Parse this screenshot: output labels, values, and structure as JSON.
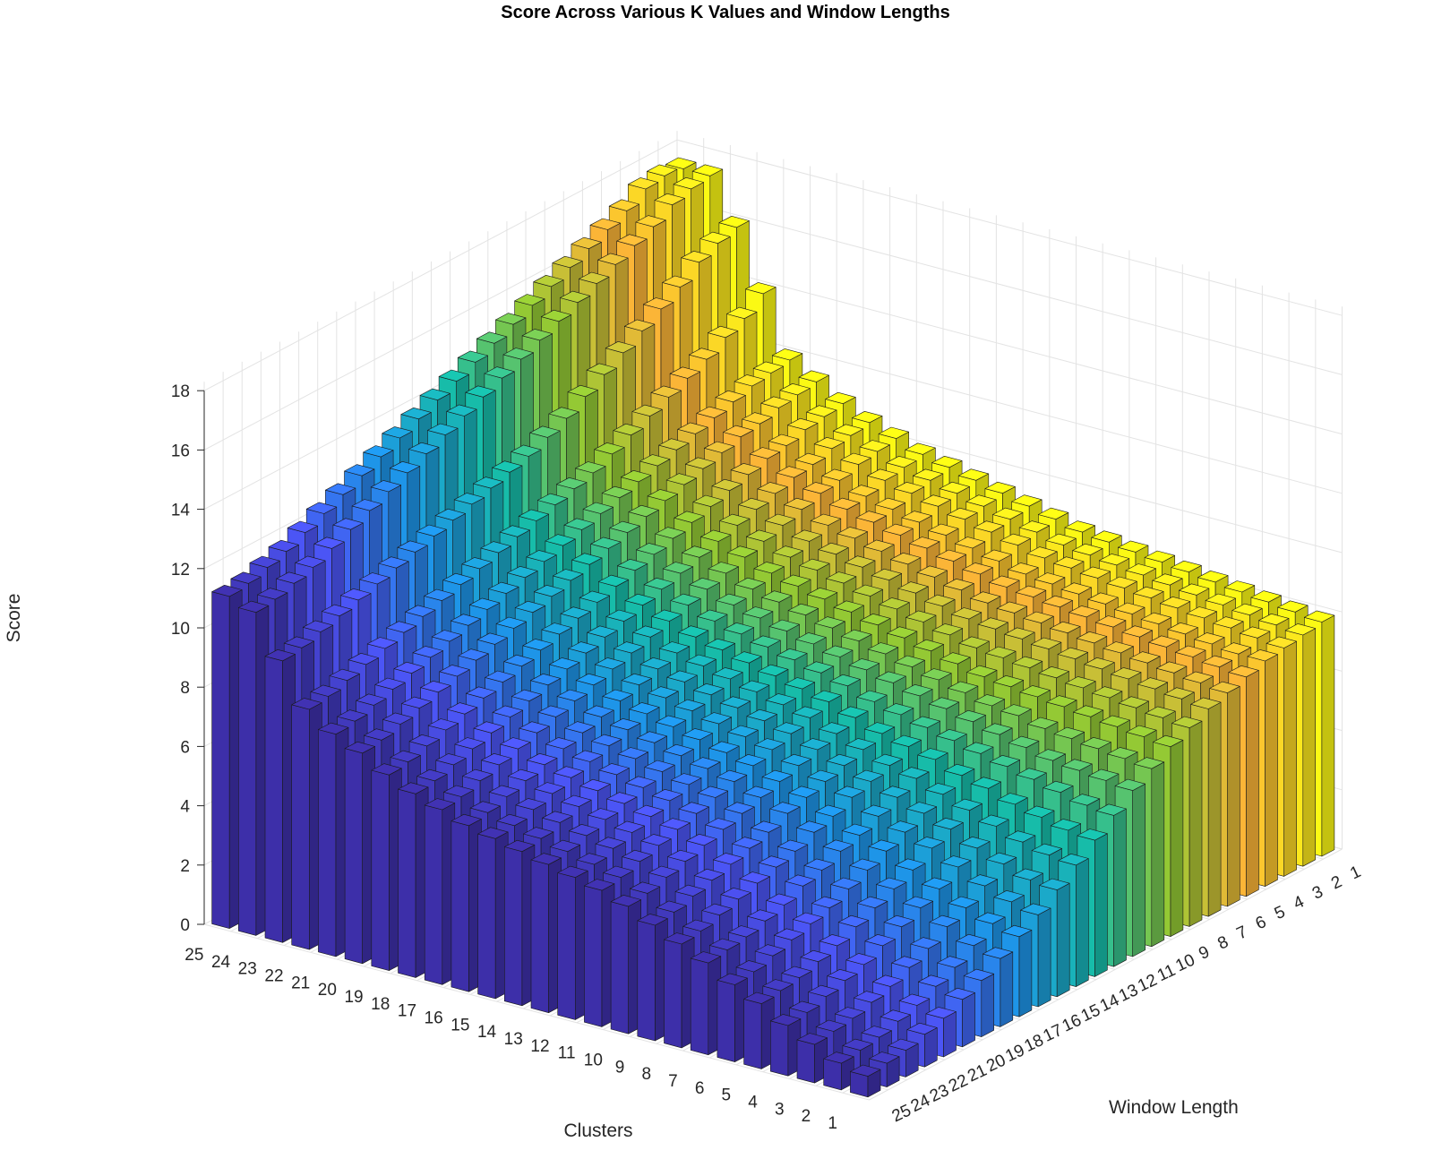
{
  "chart_data": {
    "type": "bar3",
    "title": "Score Across Various K Values and Window Lengths",
    "xlabel": "Window Length",
    "ylabel": "Clusters",
    "zlabel": "Score",
    "x_ticks": [
      "1",
      "2",
      "3",
      "4",
      "5",
      "6",
      "7",
      "8",
      "9",
      "10",
      "11",
      "12",
      "13",
      "14",
      "15",
      "16",
      "17",
      "18",
      "19",
      "20",
      "21",
      "22",
      "23",
      "24",
      "25"
    ],
    "y_ticks": [
      "1",
      "2",
      "3",
      "4",
      "5",
      "6",
      "7",
      "8",
      "9",
      "10",
      "11",
      "12",
      "13",
      "14",
      "15",
      "16",
      "17",
      "18",
      "19",
      "20",
      "21",
      "22",
      "23",
      "24",
      "25"
    ],
    "z_ticks": [
      "0",
      "2",
      "4",
      "6",
      "8",
      "10",
      "12",
      "14",
      "16",
      "18"
    ],
    "zlim": [
      0,
      18
    ],
    "grid": true,
    "colormap": [
      "#fbf914",
      "#fbb537",
      "#94c934",
      "#17bca9",
      "#1e95e8",
      "#4b55f5",
      "#3d2fa9"
    ],
    "color_by": "window length",
    "values_by_window_length": [
      {
        "window_length": 1,
        "scores": [
          7.9,
          8.0,
          8.1,
          8.2,
          8.3,
          8.4,
          8.5,
          8.6,
          8.7,
          8.8,
          9.0,
          9.2,
          9.4,
          9.6,
          9.8,
          10.0,
          10.3,
          10.6,
          11.0,
          11.5,
          12.0,
          14.0,
          16.0,
          17.5,
          17.5
        ]
      },
      {
        "window_length": 2,
        "scores": [
          7.8,
          7.9,
          8.0,
          8.1,
          8.2,
          8.3,
          8.4,
          8.5,
          8.6,
          8.7,
          8.9,
          9.1,
          9.3,
          9.5,
          9.7,
          9.9,
          10.2,
          10.5,
          10.9,
          11.4,
          11.9,
          13.5,
          15.8,
          17.4,
          17.6
        ]
      },
      {
        "window_length": 3,
        "scores": [
          7.7,
          7.8,
          7.9,
          8.0,
          8.1,
          8.2,
          8.3,
          8.4,
          8.5,
          8.6,
          8.8,
          9.0,
          9.2,
          9.4,
          9.6,
          9.8,
          10.1,
          10.4,
          10.8,
          11.3,
          11.8,
          13.2,
          15.5,
          17.2,
          17.5
        ]
      },
      {
        "window_length": 4,
        "scores": [
          7.6,
          7.6,
          7.7,
          7.8,
          7.9,
          8.0,
          8.1,
          8.2,
          8.3,
          8.4,
          8.6,
          8.8,
          9.0,
          9.2,
          9.4,
          9.6,
          9.9,
          10.2,
          10.6,
          11.1,
          11.6,
          12.8,
          15.0,
          16.8,
          17.1
        ]
      },
      {
        "window_length": 5,
        "scores": [
          7.4,
          7.5,
          7.6,
          7.7,
          7.8,
          7.9,
          8.0,
          8.1,
          8.2,
          8.3,
          8.5,
          8.7,
          8.9,
          9.1,
          9.3,
          9.5,
          9.8,
          10.1,
          10.5,
          11.0,
          11.4,
          12.5,
          14.6,
          16.5,
          16.8
        ]
      },
      {
        "window_length": 6,
        "scores": [
          7.2,
          7.3,
          7.4,
          7.5,
          7.6,
          7.7,
          7.8,
          7.9,
          8.0,
          8.1,
          8.3,
          8.5,
          8.7,
          8.9,
          9.1,
          9.3,
          9.6,
          9.9,
          10.3,
          10.8,
          11.2,
          12.2,
          14.2,
          16.2,
          16.5
        ]
      },
      {
        "window_length": 7,
        "scores": [
          7.0,
          7.1,
          7.2,
          7.3,
          7.4,
          7.5,
          7.6,
          7.7,
          7.8,
          7.9,
          8.1,
          8.3,
          8.5,
          8.7,
          8.9,
          9.1,
          9.4,
          9.7,
          10.1,
          10.6,
          11.0,
          11.9,
          13.8,
          15.9,
          16.2
        ]
      },
      {
        "window_length": 8,
        "scores": [
          6.7,
          6.8,
          6.9,
          7.0,
          7.1,
          7.2,
          7.3,
          7.4,
          7.5,
          7.7,
          7.9,
          8.1,
          8.3,
          8.5,
          8.7,
          8.9,
          9.2,
          9.5,
          9.9,
          10.4,
          10.8,
          11.6,
          13.4,
          15.6,
          15.9
        ]
      },
      {
        "window_length": 9,
        "scores": [
          6.4,
          6.5,
          6.6,
          6.7,
          6.8,
          6.9,
          7.0,
          7.1,
          7.3,
          7.5,
          7.7,
          7.9,
          8.1,
          8.3,
          8.5,
          8.7,
          9.0,
          9.3,
          9.7,
          10.2,
          10.6,
          11.3,
          13.0,
          15.3,
          15.6
        ]
      },
      {
        "window_length": 10,
        "scores": [
          6.0,
          6.1,
          6.2,
          6.3,
          6.4,
          6.6,
          6.7,
          6.9,
          7.1,
          7.3,
          7.5,
          7.7,
          7.9,
          8.1,
          8.3,
          8.5,
          8.8,
          9.1,
          9.5,
          10.0,
          10.4,
          11.0,
          12.6,
          15.0,
          15.3
        ]
      },
      {
        "window_length": 11,
        "scores": [
          5.6,
          5.7,
          5.8,
          5.9,
          6.1,
          6.3,
          6.5,
          6.7,
          6.9,
          7.1,
          7.3,
          7.5,
          7.7,
          7.9,
          8.1,
          8.3,
          8.6,
          8.9,
          9.3,
          9.8,
          10.2,
          10.8,
          12.3,
          14.7,
          15.0
        ]
      },
      {
        "window_length": 12,
        "scores": [
          5.1,
          5.2,
          5.4,
          5.6,
          5.8,
          6.0,
          6.2,
          6.4,
          6.6,
          6.8,
          7.1,
          7.3,
          7.5,
          7.7,
          7.9,
          8.1,
          8.4,
          8.7,
          9.1,
          9.6,
          10.0,
          10.6,
          12.0,
          14.4,
          14.7
        ]
      },
      {
        "window_length": 13,
        "scores": [
          4.6,
          4.7,
          4.9,
          5.1,
          5.4,
          5.6,
          5.9,
          6.1,
          6.3,
          6.6,
          6.9,
          7.1,
          7.3,
          7.5,
          7.7,
          7.9,
          8.2,
          8.5,
          8.9,
          9.4,
          9.8,
          10.4,
          11.8,
          14.1,
          14.4
        ]
      },
      {
        "window_length": 14,
        "scores": [
          4.1,
          4.2,
          4.4,
          4.7,
          5.0,
          5.3,
          5.6,
          5.8,
          6.1,
          6.4,
          6.7,
          6.9,
          7.1,
          7.3,
          7.5,
          7.7,
          8.0,
          8.3,
          8.7,
          9.2,
          9.6,
          10.2,
          11.6,
          13.8,
          14.1
        ]
      },
      {
        "window_length": 15,
        "scores": [
          3.6,
          3.7,
          4.0,
          4.3,
          4.7,
          5.0,
          5.3,
          5.6,
          5.9,
          6.2,
          6.5,
          6.7,
          6.9,
          7.1,
          7.3,
          7.5,
          7.8,
          8.1,
          8.5,
          9.0,
          9.4,
          10.0,
          11.4,
          13.5,
          13.8
        ]
      },
      {
        "window_length": 16,
        "scores": [
          3.1,
          3.3,
          3.6,
          4.0,
          4.4,
          4.7,
          5.0,
          5.4,
          5.7,
          6.0,
          6.3,
          6.5,
          6.7,
          6.9,
          7.1,
          7.3,
          7.6,
          7.9,
          8.3,
          8.8,
          9.2,
          9.8,
          11.2,
          13.2,
          13.5
        ]
      },
      {
        "window_length": 17,
        "scores": [
          2.7,
          2.9,
          3.2,
          3.6,
          4.0,
          4.4,
          4.7,
          5.1,
          5.5,
          5.8,
          6.1,
          6.3,
          6.5,
          6.7,
          6.9,
          7.1,
          7.4,
          7.7,
          8.1,
          8.6,
          9.0,
          9.6,
          11.0,
          12.9,
          13.2
        ]
      },
      {
        "window_length": 18,
        "scores": [
          2.3,
          2.5,
          2.9,
          3.3,
          3.7,
          4.1,
          4.5,
          4.9,
          5.3,
          5.6,
          5.9,
          6.1,
          6.3,
          6.5,
          6.7,
          6.9,
          7.2,
          7.5,
          7.9,
          8.4,
          8.8,
          9.4,
          10.8,
          12.6,
          12.9
        ]
      },
      {
        "window_length": 19,
        "scores": [
          1.9,
          2.1,
          2.5,
          3.0,
          3.4,
          3.8,
          4.2,
          4.6,
          5.0,
          5.4,
          5.7,
          5.9,
          6.1,
          6.3,
          6.5,
          6.7,
          7.0,
          7.3,
          7.7,
          8.2,
          8.6,
          9.2,
          10.6,
          12.3,
          12.6
        ]
      },
      {
        "window_length": 20,
        "scores": [
          1.6,
          1.8,
          2.2,
          2.7,
          3.1,
          3.5,
          4.0,
          4.4,
          4.8,
          5.2,
          5.5,
          5.7,
          5.9,
          6.1,
          6.3,
          6.5,
          6.8,
          7.1,
          7.5,
          8.0,
          8.4,
          9.0,
          10.4,
          12.0,
          12.3
        ]
      },
      {
        "window_length": 21,
        "scores": [
          1.3,
          1.5,
          1.9,
          2.4,
          2.8,
          3.3,
          3.7,
          4.2,
          4.6,
          5.0,
          5.3,
          5.5,
          5.7,
          5.9,
          6.1,
          6.3,
          6.6,
          6.9,
          7.3,
          7.8,
          8.2,
          8.8,
          10.2,
          11.7,
          12.0
        ]
      },
      {
        "window_length": 22,
        "scores": [
          1.1,
          1.3,
          1.7,
          2.2,
          2.6,
          3.1,
          3.5,
          4.0,
          4.4,
          4.8,
          5.1,
          5.3,
          5.5,
          5.7,
          5.9,
          6.1,
          6.4,
          6.7,
          7.1,
          7.6,
          8.0,
          8.6,
          10.0,
          11.4,
          11.7
        ]
      },
      {
        "window_length": 23,
        "scores": [
          0.9,
          1.1,
          1.5,
          2.0,
          2.4,
          2.9,
          3.3,
          3.8,
          4.2,
          4.6,
          4.9,
          5.1,
          5.3,
          5.5,
          5.7,
          5.9,
          6.2,
          6.5,
          6.9,
          7.4,
          7.8,
          8.4,
          9.8,
          11.2,
          11.5
        ]
      },
      {
        "window_length": 24,
        "scores": [
          0.8,
          1.0,
          1.4,
          1.8,
          2.3,
          2.7,
          3.2,
          3.6,
          4.0,
          4.4,
          4.7,
          4.9,
          5.1,
          5.3,
          5.5,
          5.7,
          6.0,
          6.3,
          6.7,
          7.2,
          7.6,
          8.2,
          9.6,
          11.0,
          11.3
        ]
      },
      {
        "window_length": 25,
        "scores": [
          0.7,
          0.9,
          1.3,
          1.7,
          2.2,
          2.6,
          3.1,
          3.5,
          3.9,
          4.3,
          4.6,
          4.8,
          5.0,
          5.2,
          5.4,
          5.6,
          5.9,
          6.2,
          6.6,
          7.1,
          7.5,
          8.1,
          9.5,
          10.9,
          11.2
        ]
      }
    ]
  }
}
